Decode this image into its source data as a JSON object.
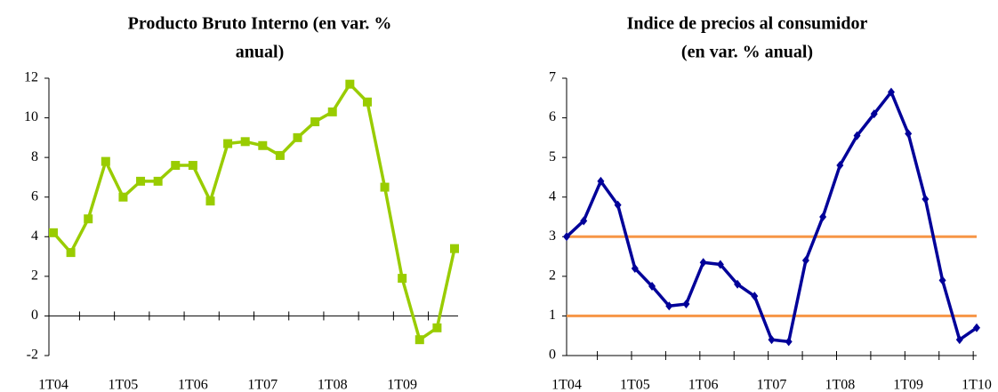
{
  "chart_data": [
    {
      "type": "line",
      "title": [
        "Producto Bruto Interno (en var. %",
        "anual)"
      ],
      "categories": [
        "1T04",
        null,
        null,
        null,
        "1T05",
        null,
        null,
        null,
        "1T06",
        null,
        null,
        null,
        "1T07",
        null,
        null,
        null,
        "1T08",
        null,
        null,
        null,
        "1T09",
        null,
        null,
        null
      ],
      "series": [
        {
          "color": "#99cc00",
          "marker": "square",
          "values": [
            4.2,
            3.2,
            4.9,
            7.8,
            6.0,
            6.8,
            6.8,
            7.6,
            7.6,
            5.8,
            8.7,
            8.8,
            8.6,
            8.1,
            9.0,
            9.8,
            10.3,
            11.7,
            10.8,
            6.5,
            1.9,
            -1.2,
            -0.6,
            3.4
          ]
        }
      ],
      "ylim": [
        -2,
        12
      ],
      "yticks": [
        -2,
        0,
        2,
        4,
        6,
        8,
        10,
        12
      ]
    },
    {
      "type": "line",
      "title": [
        "Indice de precios al consumidor",
        "(en var. % anual)"
      ],
      "categories": [
        "1T04",
        null,
        null,
        null,
        "1T05",
        null,
        null,
        null,
        "1T06",
        null,
        null,
        null,
        "1T07",
        null,
        null,
        null,
        "1T08",
        null,
        null,
        null,
        "1T09",
        null,
        null,
        null,
        "1T10"
      ],
      "series": [
        {
          "color": "#000099",
          "marker": "diamond",
          "values": [
            3.0,
            3.4,
            4.4,
            3.8,
            2.2,
            1.75,
            1.25,
            1.3,
            2.35,
            2.3,
            1.8,
            1.5,
            0.4,
            0.35,
            2.4,
            3.5,
            4.8,
            5.55,
            6.1,
            6.65,
            5.6,
            3.95,
            1.9,
            0.4,
            0.7
          ]
        }
      ],
      "reference_lines": {
        "color": "#f79646",
        "values": [
          1,
          3
        ]
      },
      "ylim": [
        0,
        7
      ],
      "yticks": [
        0,
        1,
        2,
        3,
        4,
        5,
        6,
        7
      ]
    }
  ]
}
